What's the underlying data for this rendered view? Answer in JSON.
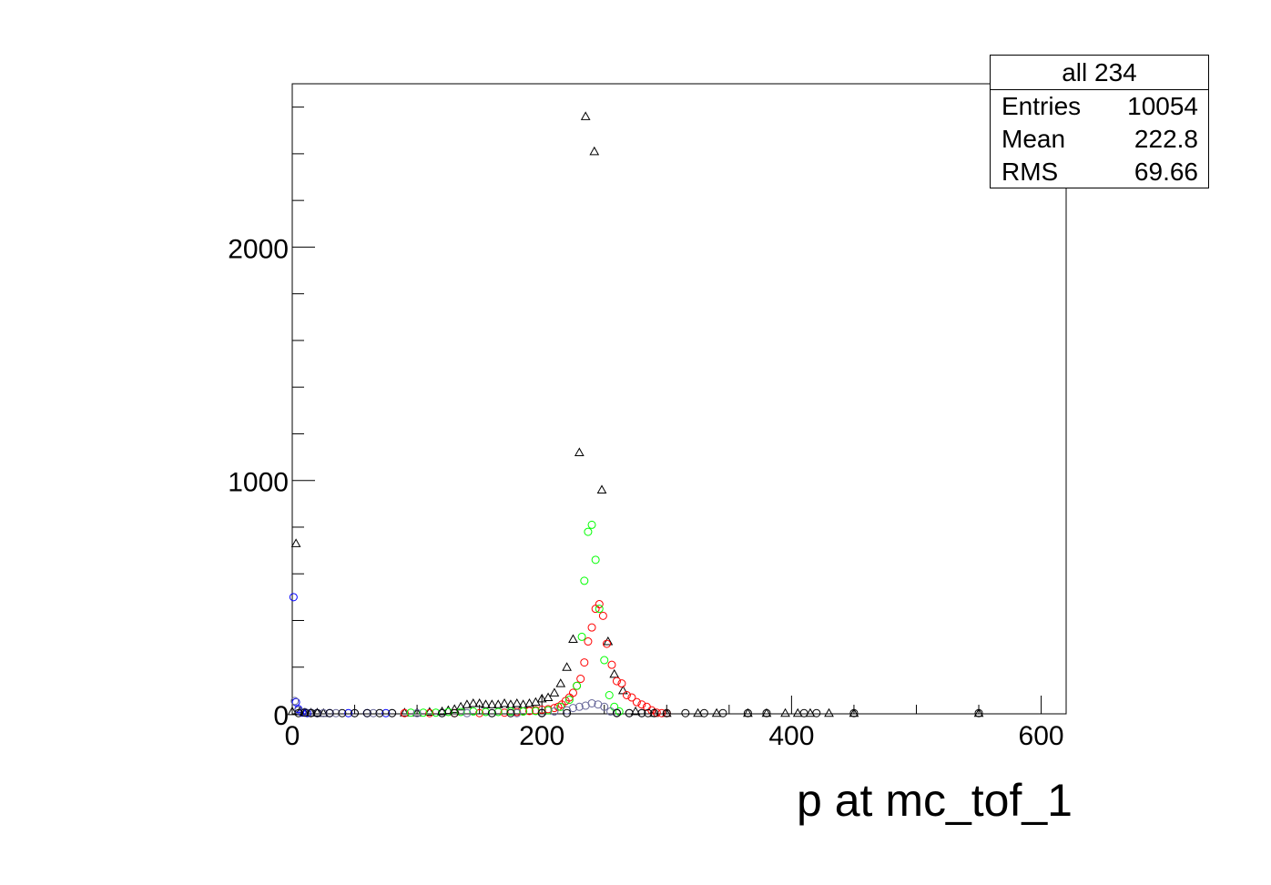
{
  "chart_data": {
    "type": "scatter",
    "title": "",
    "xlabel": "p at mc_tof_1",
    "ylabel": "",
    "xlim": [
      0,
      620
    ],
    "ylim": [
      0,
      2700
    ],
    "x_ticks": [
      0,
      200,
      400,
      600
    ],
    "y_ticks": [
      0,
      1000,
      2000
    ],
    "grid": false,
    "stats": {
      "title": "all 234",
      "rows": [
        {
          "label": "Entries",
          "value": "10054"
        },
        {
          "label": "Mean",
          "value": "222.8"
        },
        {
          "label": "RMS",
          "value": "69.66"
        }
      ]
    },
    "series": [
      {
        "marker": "triangle",
        "color": "#000000",
        "points": [
          [
            0,
            10
          ],
          [
            3,
            730
          ],
          [
            6,
            10
          ],
          [
            10,
            5
          ],
          [
            15,
            5
          ],
          [
            20,
            5
          ],
          [
            25,
            3
          ],
          [
            90,
            5
          ],
          [
            100,
            5
          ],
          [
            110,
            8
          ],
          [
            120,
            10
          ],
          [
            125,
            15
          ],
          [
            130,
            20
          ],
          [
            135,
            30
          ],
          [
            140,
            40
          ],
          [
            145,
            45
          ],
          [
            150,
            45
          ],
          [
            155,
            40
          ],
          [
            160,
            40
          ],
          [
            165,
            40
          ],
          [
            170,
            45
          ],
          [
            175,
            40
          ],
          [
            180,
            45
          ],
          [
            185,
            40
          ],
          [
            190,
            45
          ],
          [
            195,
            50
          ],
          [
            200,
            65
          ],
          [
            205,
            70
          ],
          [
            210,
            90
          ],
          [
            215,
            130
          ],
          [
            220,
            200
          ],
          [
            225,
            320
          ],
          [
            230,
            1120
          ],
          [
            235,
            2560
          ],
          [
            242,
            2410
          ],
          [
            248,
            960
          ],
          [
            253,
            310
          ],
          [
            258,
            170
          ],
          [
            265,
            100
          ],
          [
            275,
            10
          ],
          [
            290,
            3
          ],
          [
            300,
            3
          ],
          [
            325,
            3
          ],
          [
            340,
            3
          ],
          [
            365,
            3
          ],
          [
            380,
            3
          ],
          [
            395,
            3
          ],
          [
            405,
            3
          ],
          [
            415,
            3
          ],
          [
            430,
            3
          ],
          [
            450,
            3
          ],
          [
            550,
            3
          ]
        ]
      },
      {
        "marker": "circle",
        "color": "#ff0000",
        "points": [
          [
            90,
            3
          ],
          [
            110,
            3
          ],
          [
            130,
            3
          ],
          [
            150,
            3
          ],
          [
            170,
            5
          ],
          [
            180,
            8
          ],
          [
            185,
            10
          ],
          [
            190,
            12
          ],
          [
            195,
            15
          ],
          [
            200,
            18
          ],
          [
            205,
            20
          ],
          [
            210,
            25
          ],
          [
            213,
            30
          ],
          [
            216,
            40
          ],
          [
            219,
            55
          ],
          [
            222,
            70
          ],
          [
            225,
            90
          ],
          [
            228,
            120
          ],
          [
            231,
            150
          ],
          [
            234,
            220
          ],
          [
            237,
            310
          ],
          [
            240,
            370
          ],
          [
            243,
            450
          ],
          [
            246,
            470
          ],
          [
            249,
            420
          ],
          [
            252,
            300
          ],
          [
            256,
            210
          ],
          [
            260,
            140
          ],
          [
            264,
            130
          ],
          [
            268,
            80
          ],
          [
            272,
            70
          ],
          [
            276,
            50
          ],
          [
            280,
            40
          ],
          [
            284,
            30
          ],
          [
            288,
            15
          ],
          [
            292,
            5
          ],
          [
            296,
            3
          ],
          [
            300,
            3
          ]
        ]
      },
      {
        "marker": "circle",
        "color": "#00ff00",
        "points": [
          [
            95,
            5
          ],
          [
            105,
            5
          ],
          [
            115,
            5
          ],
          [
            125,
            8
          ],
          [
            135,
            8
          ],
          [
            145,
            10
          ],
          [
            155,
            8
          ],
          [
            165,
            8
          ],
          [
            175,
            10
          ],
          [
            185,
            10
          ],
          [
            195,
            12
          ],
          [
            205,
            15
          ],
          [
            215,
            30
          ],
          [
            222,
            60
          ],
          [
            228,
            120
          ],
          [
            232,
            330
          ],
          [
            234,
            570
          ],
          [
            237,
            780
          ],
          [
            240,
            810
          ],
          [
            243,
            660
          ],
          [
            246,
            450
          ],
          [
            250,
            230
          ],
          [
            254,
            80
          ],
          [
            258,
            30
          ],
          [
            262,
            10
          ]
        ]
      },
      {
        "marker": "circle",
        "color": "#0000ff",
        "points": [
          [
            1,
            500
          ],
          [
            3,
            50
          ],
          [
            5,
            20
          ],
          [
            8,
            5
          ],
          [
            12,
            3
          ],
          [
            20,
            3
          ],
          [
            30,
            3
          ],
          [
            45,
            3
          ],
          [
            60,
            3
          ],
          [
            75,
            3
          ]
        ]
      },
      {
        "marker": "circle",
        "color": "#666699",
        "points": [
          [
            2,
            55
          ],
          [
            5,
            15
          ],
          [
            10,
            8
          ],
          [
            15,
            5
          ],
          [
            25,
            3
          ],
          [
            35,
            3
          ],
          [
            50,
            3
          ],
          [
            65,
            3
          ],
          [
            80,
            3
          ],
          [
            100,
            3
          ],
          [
            120,
            3
          ],
          [
            140,
            3
          ],
          [
            160,
            3
          ],
          [
            180,
            3
          ],
          [
            200,
            5
          ],
          [
            210,
            10
          ],
          [
            220,
            15
          ],
          [
            225,
            25
          ],
          [
            230,
            30
          ],
          [
            235,
            35
          ],
          [
            240,
            45
          ],
          [
            245,
            40
          ],
          [
            250,
            30
          ],
          [
            255,
            10
          ],
          [
            260,
            5
          ],
          [
            270,
            3
          ],
          [
            280,
            3
          ]
        ]
      },
      {
        "marker": "circle",
        "color": "#000000",
        "points": [
          [
            5,
            3
          ],
          [
            10,
            5
          ],
          [
            15,
            3
          ],
          [
            20,
            3
          ],
          [
            30,
            3
          ],
          [
            40,
            3
          ],
          [
            50,
            3
          ],
          [
            60,
            3
          ],
          [
            70,
            3
          ],
          [
            80,
            3
          ],
          [
            120,
            3
          ],
          [
            130,
            3
          ],
          [
            160,
            3
          ],
          [
            175,
            3
          ],
          [
            200,
            3
          ],
          [
            220,
            3
          ],
          [
            260,
            3
          ],
          [
            270,
            3
          ],
          [
            280,
            3
          ],
          [
            285,
            3
          ],
          [
            290,
            3
          ],
          [
            300,
            3
          ],
          [
            315,
            3
          ],
          [
            330,
            3
          ],
          [
            345,
            3
          ],
          [
            365,
            3
          ],
          [
            380,
            3
          ],
          [
            410,
            3
          ],
          [
            420,
            3
          ],
          [
            450,
            3
          ],
          [
            550,
            3
          ]
        ]
      }
    ]
  }
}
